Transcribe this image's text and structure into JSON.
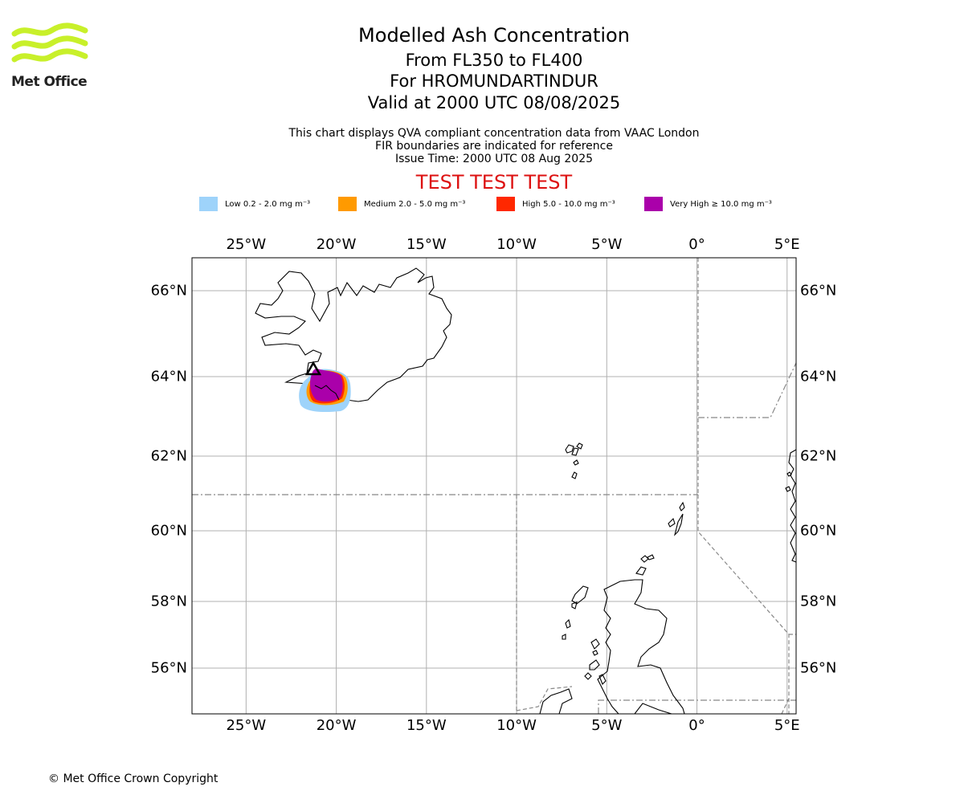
{
  "logo": {
    "name": "Met Office",
    "color": "#c8f02a"
  },
  "title": "Modelled Ash Concentration",
  "subtitle_lines": [
    "From FL350 to FL400",
    "For HROMUNDARTINDUR",
    "Valid at 2000 UTC 08/08/2025"
  ],
  "notes": [
    "This chart displays QVA compliant concentration data from VAAC London",
    "FIR boundaries are indicated for reference",
    "Issue Time: 2000 UTC 08 Aug 2025"
  ],
  "banner": "TEST TEST TEST",
  "legend": [
    {
      "label": "Low 0.2 - 2.0 mg m⁻³",
      "color": "#9ed3fa"
    },
    {
      "label": "Medium 2.0 - 5.0 mg m⁻³",
      "color": "#ff9a00"
    },
    {
      "label": "High 5.0 - 10.0 mg m⁻³",
      "color": "#ff2800"
    },
    {
      "label": "Very High ≥ 10.0 mg m⁻³",
      "color": "#aa00aa"
    }
  ],
  "map": {
    "lon_range": [
      -28,
      5.5
    ],
    "lat_range": [
      54.8,
      66.8
    ],
    "lon_ticks": [
      {
        "value": -25,
        "label": "25°W"
      },
      {
        "value": -20,
        "label": "20°W"
      },
      {
        "value": -15,
        "label": "15°W"
      },
      {
        "value": -10,
        "label": "10°W"
      },
      {
        "value": -5,
        "label": "5°W"
      },
      {
        "value": 0,
        "label": "0°"
      },
      {
        "value": 5,
        "label": "5°E"
      }
    ],
    "lat_ticks": [
      {
        "value": 66,
        "label": "66°N"
      },
      {
        "value": 64,
        "label": "64°N"
      },
      {
        "value": 62,
        "label": "62°N"
      },
      {
        "value": 60,
        "label": "60°N"
      },
      {
        "value": 58,
        "label": "58°N"
      },
      {
        "value": 56,
        "label": "56°N"
      }
    ],
    "volcano_symbol": "triangle-icon"
  },
  "copyright": "© Met Office Crown Copyright"
}
